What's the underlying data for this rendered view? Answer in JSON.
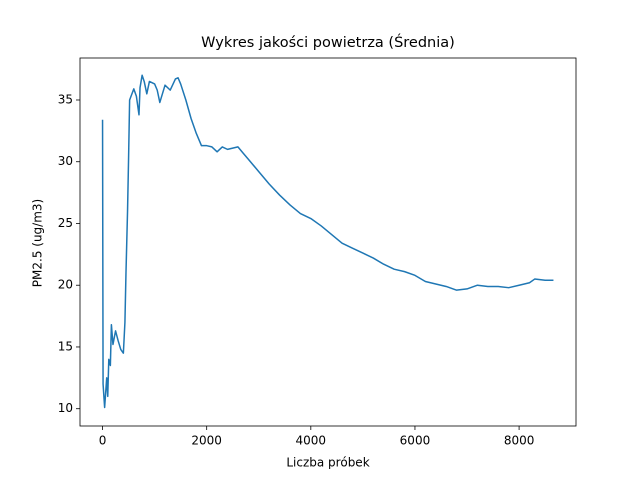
{
  "chart_data": {
    "type": "line",
    "title": "Wykres jakości powietrza (Średnia)",
    "x_label": "Liczba próbek",
    "y_label": "PM2.5 (ug/m3)",
    "x": [
      0,
      10,
      40,
      80,
      100,
      120,
      150,
      170,
      200,
      250,
      300,
      350,
      400,
      430,
      450,
      480,
      500,
      520,
      600,
      650,
      700,
      720,
      760,
      800,
      850,
      900,
      1000,
      1050,
      1100,
      1200,
      1300,
      1400,
      1450,
      1500,
      1600,
      1700,
      1800,
      1900,
      2000,
      2100,
      2200,
      2300,
      2400,
      2500,
      2600,
      2700,
      2800,
      3000,
      3200,
      3400,
      3600,
      3800,
      4000,
      4200,
      4400,
      4600,
      4800,
      5000,
      5200,
      5400,
      5600,
      5800,
      6000,
      6200,
      6400,
      6600,
      6800,
      7000,
      7200,
      7400,
      7600,
      7800,
      8000,
      8200,
      8300,
      8500,
      8660
    ],
    "series": [
      {
        "name": "PM2.5",
        "color": "#1f77b4",
        "values": [
          33.4,
          12,
          10.1,
          12.5,
          11,
          14,
          13.5,
          16.8,
          15.2,
          16.3,
          15.5,
          14.8,
          14.5,
          17,
          21,
          26,
          30.3,
          35,
          35.9,
          35.3,
          33.8,
          36,
          37,
          36.5,
          35.5,
          36.5,
          36.3,
          35.8,
          34.8,
          36.2,
          35.8,
          36.7,
          36.8,
          36.3,
          35,
          33.5,
          32.3,
          31.3,
          31.3,
          31.2,
          30.8,
          31.2,
          31,
          31.1,
          31.2,
          30.7,
          30.2,
          29.2,
          28.2,
          27.3,
          26.5,
          25.8,
          25.4,
          24.8,
          24.1,
          23.4,
          23,
          22.6,
          22.2,
          21.7,
          21.3,
          21.1,
          20.8,
          20.3,
          20.1,
          19.9,
          19.6,
          19.7,
          20,
          19.9,
          19.9,
          19.8,
          20,
          20.2,
          20.5,
          20.4,
          20.4
        ]
      }
    ],
    "xlim": [
      -433,
      9093
    ],
    "ylim": [
      8.6,
      38.4
    ],
    "xticks": [
      0,
      2000,
      4000,
      6000,
      8000
    ],
    "yticks": [
      10,
      15,
      20,
      25,
      30,
      35
    ]
  }
}
